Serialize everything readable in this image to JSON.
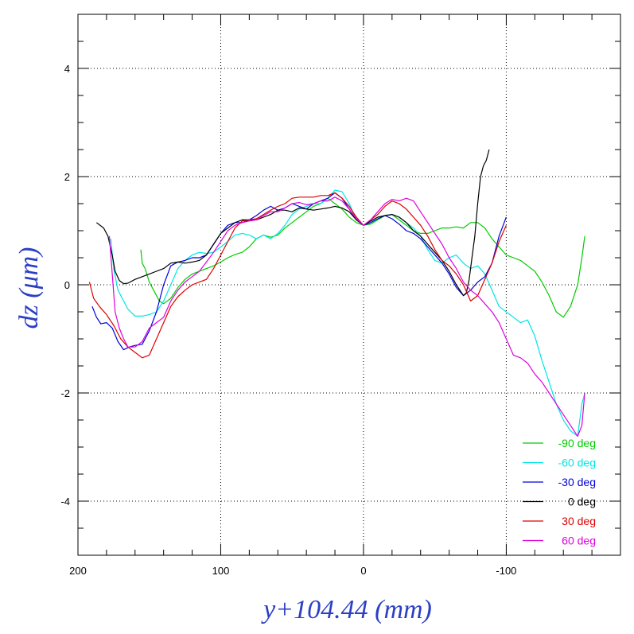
{
  "chart_data": {
    "type": "line",
    "xlabel": "y+104.44  (mm)",
    "ylabel": "dz  (μm)",
    "xlim": [
      200,
      -180
    ],
    "ylim": [
      -5,
      5
    ],
    "x_reversed": true,
    "x_ticks": [
      200,
      100,
      0,
      -100
    ],
    "y_ticks": [
      4,
      2,
      0,
      -2,
      -4
    ],
    "grid": true,
    "legend_position": "bottom-right",
    "series": [
      {
        "name": "-90 deg",
        "color": "#00cc00",
        "x": [
          156,
          155,
          153,
          150,
          147,
          143,
          140,
          135,
          130,
          125,
          120,
          115,
          110,
          105,
          100,
          95,
          90,
          85,
          80,
          75,
          70,
          65,
          60,
          55,
          50,
          45,
          40,
          35,
          30,
          25,
          20,
          15,
          10,
          5,
          0,
          -5,
          -10,
          -15,
          -20,
          -25,
          -30,
          -35,
          -40,
          -45,
          -50,
          -55,
          -60,
          -65,
          -70,
          -75,
          -80,
          -85,
          -90,
          -95,
          -100,
          -105,
          -110,
          -115,
          -120,
          -125,
          -130,
          -135,
          -140,
          -145,
          -150,
          -153,
          -155
        ],
        "y": [
          0.65,
          0.4,
          0.3,
          0.05,
          -0.1,
          -0.3,
          -0.35,
          -0.25,
          -0.05,
          0.1,
          0.2,
          0.25,
          0.3,
          0.35,
          0.42,
          0.5,
          0.56,
          0.6,
          0.7,
          0.85,
          0.92,
          0.88,
          0.92,
          1.05,
          1.15,
          1.25,
          1.35,
          1.45,
          1.5,
          1.6,
          1.5,
          1.4,
          1.25,
          1.15,
          1.1,
          1.12,
          1.2,
          1.28,
          1.3,
          1.2,
          1.1,
          1.0,
          0.95,
          0.95,
          1.0,
          1.05,
          1.05,
          1.07,
          1.05,
          1.15,
          1.15,
          1.05,
          0.85,
          0.7,
          0.55,
          0.5,
          0.45,
          0.35,
          0.25,
          0.05,
          -0.2,
          -0.5,
          -0.6,
          -0.4,
          0.0,
          0.5,
          0.9
        ]
      },
      {
        "name": "-60 deg",
        "color": "#00e5e5",
        "x": [
          177,
          175,
          172,
          168,
          165,
          160,
          155,
          150,
          145,
          140,
          135,
          130,
          125,
          120,
          115,
          110,
          105,
          100,
          95,
          90,
          85,
          80,
          75,
          70,
          65,
          60,
          55,
          50,
          45,
          40,
          35,
          30,
          25,
          20,
          15,
          10,
          5,
          0,
          -5,
          -10,
          -15,
          -20,
          -25,
          -30,
          -35,
          -40,
          -45,
          -50,
          -55,
          -60,
          -65,
          -70,
          -75,
          -80,
          -85,
          -90,
          -95,
          -100,
          -105,
          -110,
          -115,
          -120,
          -125,
          -130,
          -135,
          -140,
          -145,
          -150,
          -153,
          -155
        ],
        "y": [
          0.85,
          0.3,
          -0.1,
          -0.3,
          -0.45,
          -0.58,
          -0.58,
          -0.55,
          -0.5,
          -0.3,
          0.0,
          0.3,
          0.45,
          0.55,
          0.6,
          0.58,
          0.6,
          0.7,
          0.8,
          0.92,
          0.95,
          0.92,
          0.85,
          0.92,
          0.85,
          0.95,
          1.1,
          1.3,
          1.4,
          1.45,
          1.5,
          1.5,
          1.6,
          1.75,
          1.72,
          1.5,
          1.2,
          1.1,
          1.15,
          1.22,
          1.28,
          1.3,
          1.25,
          1.15,
          1.05,
          0.9,
          0.65,
          0.45,
          0.4,
          0.5,
          0.55,
          0.4,
          0.3,
          0.35,
          0.2,
          -0.1,
          -0.4,
          -0.5,
          -0.6,
          -0.7,
          -0.65,
          -0.95,
          -1.4,
          -1.8,
          -2.2,
          -2.5,
          -2.7,
          -2.8,
          -2.2,
          -2.0
        ]
      },
      {
        "name": "-30 deg",
        "color": "#0000dd",
        "x": [
          190,
          187,
          184,
          180,
          176,
          172,
          168,
          164,
          160,
          155,
          150,
          145,
          140,
          135,
          130,
          125,
          120,
          115,
          110,
          105,
          100,
          95,
          90,
          85,
          80,
          75,
          70,
          65,
          60,
          55,
          50,
          45,
          40,
          35,
          30,
          25,
          20,
          15,
          10,
          5,
          0,
          -5,
          -10,
          -15,
          -20,
          -25,
          -30,
          -35,
          -40,
          -45,
          -50,
          -55,
          -60,
          -65,
          -70,
          -75,
          -80,
          -85,
          -90,
          -95,
          -100
        ],
        "y": [
          -0.4,
          -0.6,
          -0.72,
          -0.7,
          -0.8,
          -1.05,
          -1.2,
          -1.15,
          -1.12,
          -1.1,
          -0.85,
          -0.5,
          0.0,
          0.35,
          0.42,
          0.45,
          0.5,
          0.5,
          0.55,
          0.75,
          0.95,
          1.1,
          1.15,
          1.15,
          1.2,
          1.28,
          1.38,
          1.45,
          1.38,
          1.42,
          1.5,
          1.45,
          1.4,
          1.5,
          1.55,
          1.6,
          1.7,
          1.6,
          1.4,
          1.2,
          1.1,
          1.15,
          1.22,
          1.28,
          1.22,
          1.12,
          1.0,
          0.95,
          0.85,
          0.7,
          0.55,
          0.4,
          0.2,
          -0.05,
          -0.2,
          -0.1,
          0.05,
          0.15,
          0.4,
          0.9,
          1.25
        ]
      },
      {
        "name": "0 deg",
        "color": "#000000",
        "x": [
          187,
          182,
          179,
          176,
          174,
          171,
          168,
          165,
          160,
          155,
          150,
          145,
          140,
          135,
          130,
          125,
          120,
          115,
          110,
          105,
          100,
          95,
          90,
          85,
          80,
          75,
          70,
          65,
          60,
          55,
          50,
          45,
          40,
          35,
          30,
          25,
          20,
          15,
          10,
          5,
          0,
          -5,
          -10,
          -15,
          -20,
          -25,
          -30,
          -35,
          -40,
          -45,
          -50,
          -55,
          -60,
          -65,
          -70,
          -72,
          -74,
          -76,
          -78,
          -80,
          -82,
          -84,
          -86,
          -88
        ],
        "y": [
          1.15,
          1.05,
          0.9,
          0.55,
          0.25,
          0.08,
          0.02,
          0.03,
          0.1,
          0.15,
          0.2,
          0.25,
          0.3,
          0.4,
          0.42,
          0.4,
          0.42,
          0.45,
          0.55,
          0.75,
          0.95,
          1.05,
          1.15,
          1.2,
          1.2,
          1.2,
          1.25,
          1.3,
          1.38,
          1.38,
          1.35,
          1.42,
          1.4,
          1.38,
          1.4,
          1.42,
          1.45,
          1.42,
          1.35,
          1.2,
          1.1,
          1.18,
          1.25,
          1.28,
          1.3,
          1.25,
          1.15,
          1.0,
          0.9,
          0.75,
          0.6,
          0.45,
          0.25,
          0.0,
          -0.2,
          -0.15,
          0.1,
          0.5,
          0.9,
          1.5,
          2.0,
          2.2,
          2.3,
          2.5
        ]
      },
      {
        "name": "30 deg",
        "color": "#dd0000",
        "x": [
          192,
          189,
          185,
          180,
          175,
          170,
          165,
          160,
          155,
          150,
          145,
          140,
          135,
          130,
          125,
          120,
          115,
          110,
          105,
          100,
          95,
          90,
          85,
          80,
          75,
          70,
          65,
          60,
          55,
          50,
          45,
          40,
          35,
          30,
          25,
          20,
          15,
          10,
          5,
          0,
          -5,
          -10,
          -15,
          -20,
          -25,
          -30,
          -35,
          -40,
          -45,
          -50,
          -55,
          -60,
          -65,
          -70,
          -75,
          -80,
          -85,
          -90,
          -95,
          -100
        ],
        "y": [
          0.05,
          -0.25,
          -0.4,
          -0.55,
          -0.75,
          -1.0,
          -1.15,
          -1.25,
          -1.35,
          -1.3,
          -1.0,
          -0.7,
          -0.4,
          -0.22,
          -0.1,
          0.0,
          0.05,
          0.1,
          0.3,
          0.55,
          0.8,
          1.05,
          1.18,
          1.2,
          1.22,
          1.3,
          1.38,
          1.45,
          1.5,
          1.6,
          1.62,
          1.62,
          1.62,
          1.65,
          1.65,
          1.7,
          1.6,
          1.45,
          1.25,
          1.1,
          1.2,
          1.3,
          1.45,
          1.55,
          1.5,
          1.4,
          1.25,
          1.1,
          0.9,
          0.65,
          0.45,
          0.35,
          0.2,
          0.0,
          -0.3,
          -0.2,
          0.1,
          0.4,
          0.8,
          1.1
        ]
      },
      {
        "name": "60 deg",
        "color": "#dd00dd",
        "x": [
          178,
          176,
          174,
          171,
          168,
          165,
          160,
          155,
          150,
          145,
          140,
          135,
          130,
          125,
          120,
          115,
          110,
          105,
          100,
          95,
          90,
          85,
          80,
          75,
          70,
          65,
          60,
          55,
          50,
          45,
          40,
          35,
          30,
          25,
          20,
          15,
          10,
          5,
          0,
          -5,
          -10,
          -15,
          -20,
          -25,
          -30,
          -35,
          -40,
          -45,
          -50,
          -55,
          -60,
          -65,
          -70,
          -75,
          -80,
          -85,
          -90,
          -95,
          -100,
          -105,
          -110,
          -115,
          -120,
          -125,
          -130,
          -135,
          -140,
          -145,
          -150,
          -153,
          -155
        ],
        "y": [
          0.9,
          0.2,
          -0.5,
          -0.8,
          -1.0,
          -1.15,
          -1.15,
          -1.05,
          -0.8,
          -0.7,
          -0.6,
          -0.3,
          -0.1,
          0.05,
          0.15,
          0.25,
          0.42,
          0.6,
          0.8,
          1.0,
          1.1,
          1.15,
          1.18,
          1.2,
          1.28,
          1.35,
          1.35,
          1.42,
          1.5,
          1.52,
          1.48,
          1.5,
          1.55,
          1.55,
          1.62,
          1.55,
          1.4,
          1.22,
          1.1,
          1.2,
          1.35,
          1.5,
          1.58,
          1.55,
          1.6,
          1.55,
          1.35,
          1.15,
          0.95,
          0.75,
          0.5,
          0.3,
          0.05,
          -0.1,
          -0.2,
          -0.35,
          -0.5,
          -0.7,
          -1.0,
          -1.3,
          -1.35,
          -1.45,
          -1.65,
          -1.8,
          -2.0,
          -2.2,
          -2.4,
          -2.6,
          -2.8,
          -2.6,
          -2.0
        ]
      }
    ]
  }
}
